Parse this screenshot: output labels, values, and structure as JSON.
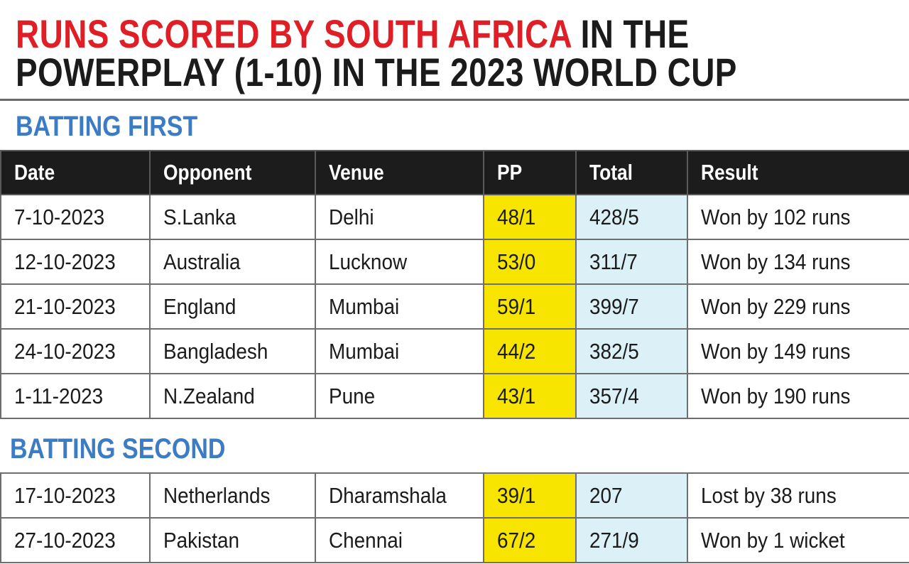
{
  "title": {
    "line1_red": "RUNS SCORED BY SOUTH AFRICA",
    "line1_rest": " IN THE",
    "line2": "POWERPLAY (1-10) IN THE 2023 WORLD CUP"
  },
  "colors": {
    "title_red": "#e01e26",
    "section_blue": "#3b7cc4",
    "pp_yellow": "#f7e500",
    "total_blue": "#dcf0f8",
    "header_black": "#1c1c1c"
  },
  "chart_data": {
    "type": "table",
    "title": "RUNS SCORED BY SOUTH AFRICA IN THE POWERPLAY (1-10) IN THE 2023 WORLD CUP",
    "columns": [
      "Date",
      "Opponent",
      "Venue",
      "PP",
      "Total",
      "Result"
    ],
    "batting_first": {
      "label": "BATTING FIRST",
      "rows": [
        [
          "7-10-2023",
          "S.Lanka",
          "Delhi",
          "48/1",
          "428/5",
          "Won by 102 runs"
        ],
        [
          "12-10-2023",
          "Australia",
          "Lucknow",
          "53/0",
          "311/7",
          "Won by 134 runs"
        ],
        [
          "21-10-2023",
          "England",
          "Mumbai",
          "59/1",
          "399/7",
          "Won by 229 runs"
        ],
        [
          "24-10-2023",
          "Bangladesh",
          "Mumbai",
          "44/2",
          "382/5",
          "Won by 149 runs"
        ],
        [
          "1-11-2023",
          "N.Zealand",
          "Pune",
          "43/1",
          "357/4",
          "Won by 190 runs"
        ]
      ]
    },
    "batting_second": {
      "label": "BATTING SECOND",
      "rows": [
        [
          "17-10-2023",
          "Netherlands",
          "Dharamshala",
          "39/1",
          "207",
          "Lost by 38 runs"
        ],
        [
          "27-10-2023",
          "Pakistan",
          "Chennai",
          "67/2",
          "271/9",
          "Won  by 1  wicket"
        ]
      ]
    }
  }
}
